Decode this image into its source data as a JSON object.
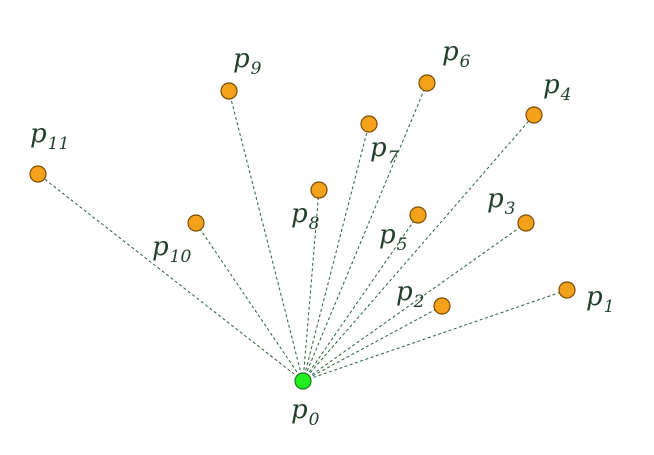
{
  "colors": {
    "origin_fill": "#22ee22",
    "origin_stroke": "#1a7a1a",
    "point_fill": "#f5a21b",
    "point_stroke": "#7a4a00",
    "ray_stroke": "#2e5e3a",
    "label_color": "#1f3d2a"
  },
  "origin": {
    "letter": "p",
    "sub": "0"
  },
  "points": [
    {
      "letter": "p",
      "sub": "1"
    },
    {
      "letter": "p",
      "sub": "2"
    },
    {
      "letter": "p",
      "sub": "3"
    },
    {
      "letter": "p",
      "sub": "4"
    },
    {
      "letter": "p",
      "sub": "5"
    },
    {
      "letter": "p",
      "sub": "6"
    },
    {
      "letter": "p",
      "sub": "7"
    },
    {
      "letter": "p",
      "sub": "8"
    },
    {
      "letter": "p",
      "sub": "9"
    },
    {
      "letter": "p",
      "sub": "10"
    },
    {
      "letter": "p",
      "sub": "11"
    }
  ]
}
